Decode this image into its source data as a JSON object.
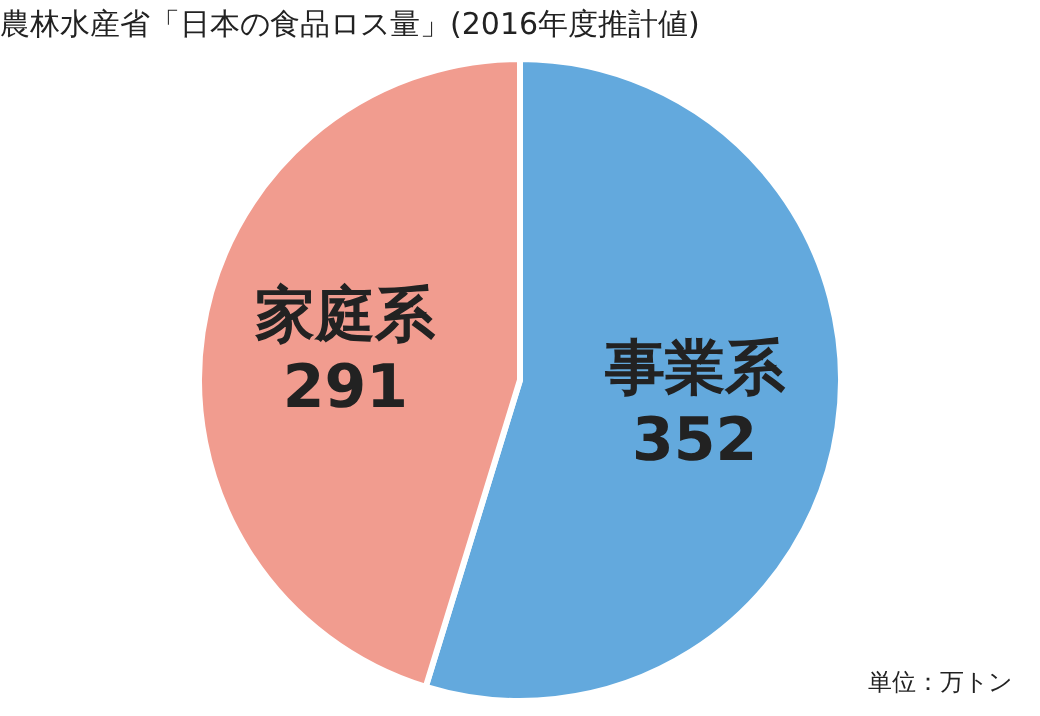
{
  "chart_data": {
    "type": "pie",
    "title": "農林水産省「日本の食品ロス量」(2016年度推計値)",
    "categories": [
      "事業系",
      "家庭系"
    ],
    "values": [
      352,
      291
    ],
    "colors": [
      "#63a9dd",
      "#f19c8f"
    ],
    "data_labels": true,
    "legend": false,
    "annotations": [
      "単位：万トン"
    ]
  }
}
